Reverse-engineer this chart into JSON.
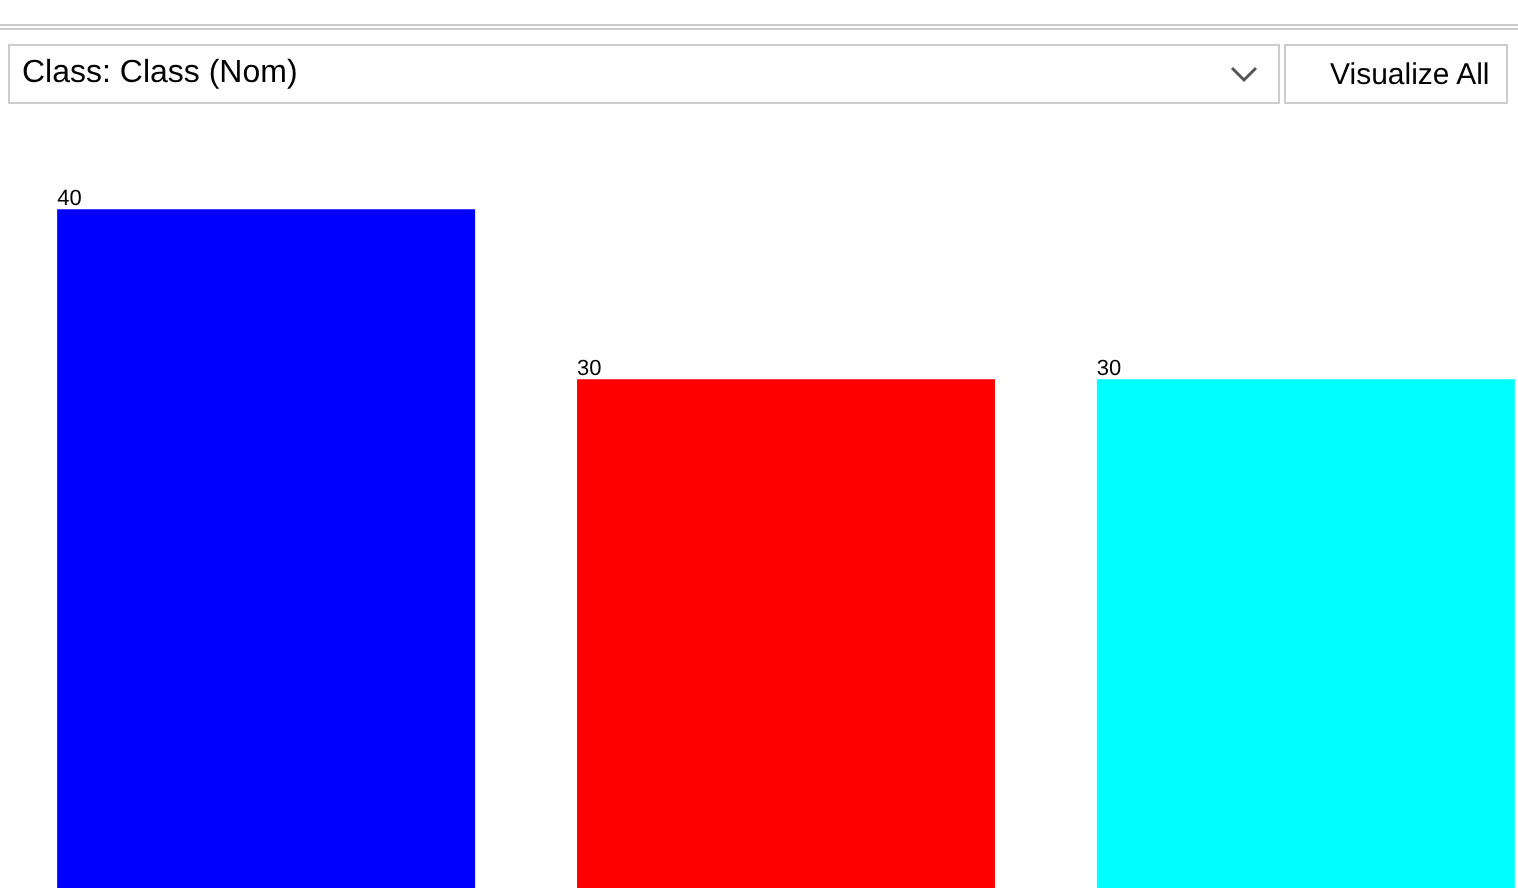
{
  "chart_data": {
    "type": "bar",
    "title": "Class: Class (Nom)",
    "annotations": [
      "Visualize All"
    ],
    "categories": [
      null,
      null,
      null
    ],
    "values": [
      40,
      30,
      30
    ],
    "colors": [
      "#0000ff",
      "#ff0000",
      "#00ffff"
    ],
    "data_labels": true
  }
}
